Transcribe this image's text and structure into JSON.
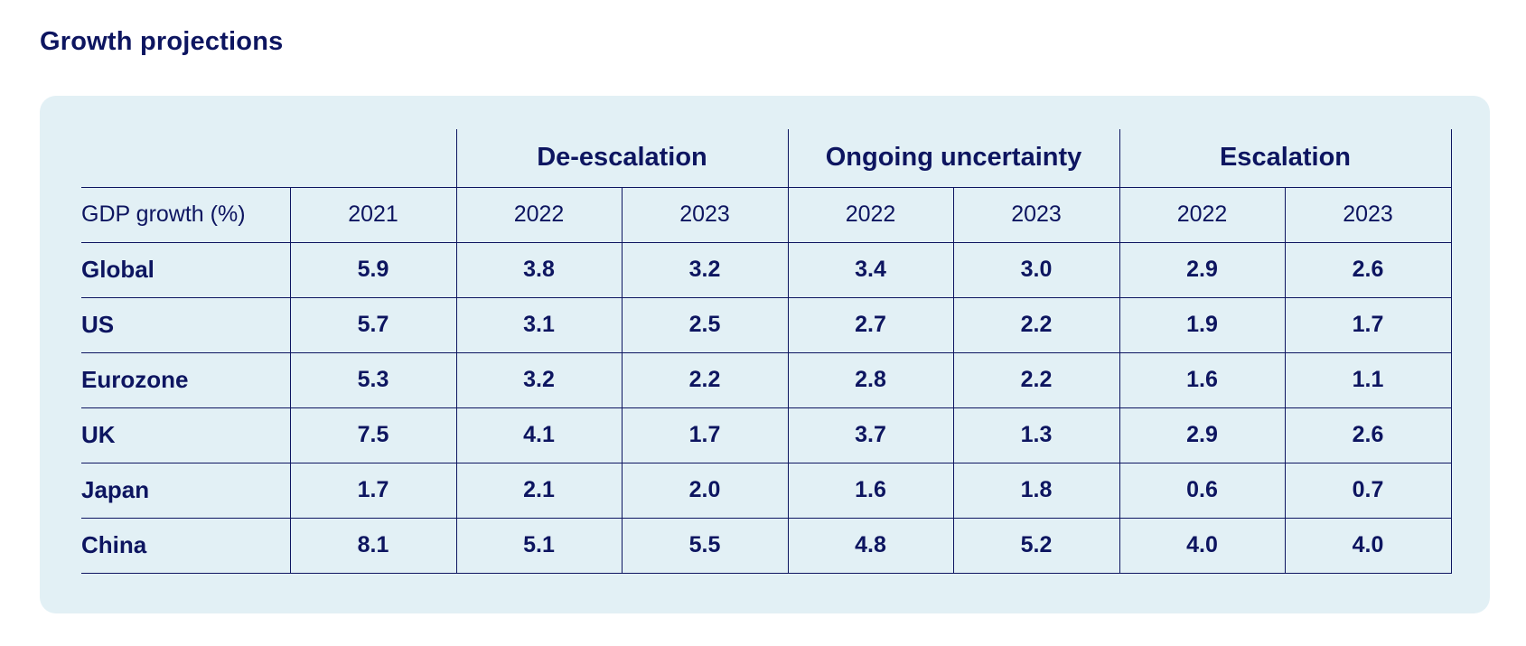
{
  "page": {
    "title": "Growth projections"
  },
  "colors": {
    "text": "#0d1560",
    "panel_background": "#e2f0f5",
    "rule_lines": "#0d1560"
  },
  "chart_data": {
    "type": "table",
    "title": "Growth projections",
    "row_header_label": "GDP growth (%)",
    "groups": [
      {
        "name": "",
        "years": [
          "2021"
        ]
      },
      {
        "name": "De-escalation",
        "years": [
          "2022",
          "2023"
        ]
      },
      {
        "name": "Ongoing uncertainty",
        "years": [
          "2022",
          "2023"
        ]
      },
      {
        "name": "Escalation",
        "years": [
          "2022",
          "2023"
        ]
      }
    ],
    "columns": [
      "2021",
      "2022",
      "2023",
      "2022",
      "2023",
      "2022",
      "2023"
    ],
    "rows": [
      {
        "label": "Global",
        "values": [
          "5.9",
          "3.8",
          "3.2",
          "3.4",
          "3.0",
          "2.9",
          "2.6"
        ]
      },
      {
        "label": "US",
        "values": [
          "5.7",
          "3.1",
          "2.5",
          "2.7",
          "2.2",
          "1.9",
          "1.7"
        ]
      },
      {
        "label": "Eurozone",
        "values": [
          "5.3",
          "3.2",
          "2.2",
          "2.8",
          "2.2",
          "1.6",
          "1.1"
        ]
      },
      {
        "label": "UK",
        "values": [
          "7.5",
          "4.1",
          "1.7",
          "3.7",
          "1.3",
          "2.9",
          "2.6"
        ]
      },
      {
        "label": "Japan",
        "values": [
          "1.7",
          "2.1",
          "2.0",
          "1.6",
          "1.8",
          "0.6",
          "0.7"
        ]
      },
      {
        "label": "China",
        "values": [
          "8.1",
          "5.1",
          "5.5",
          "4.8",
          "5.2",
          "4.0",
          "4.0"
        ]
      }
    ]
  }
}
